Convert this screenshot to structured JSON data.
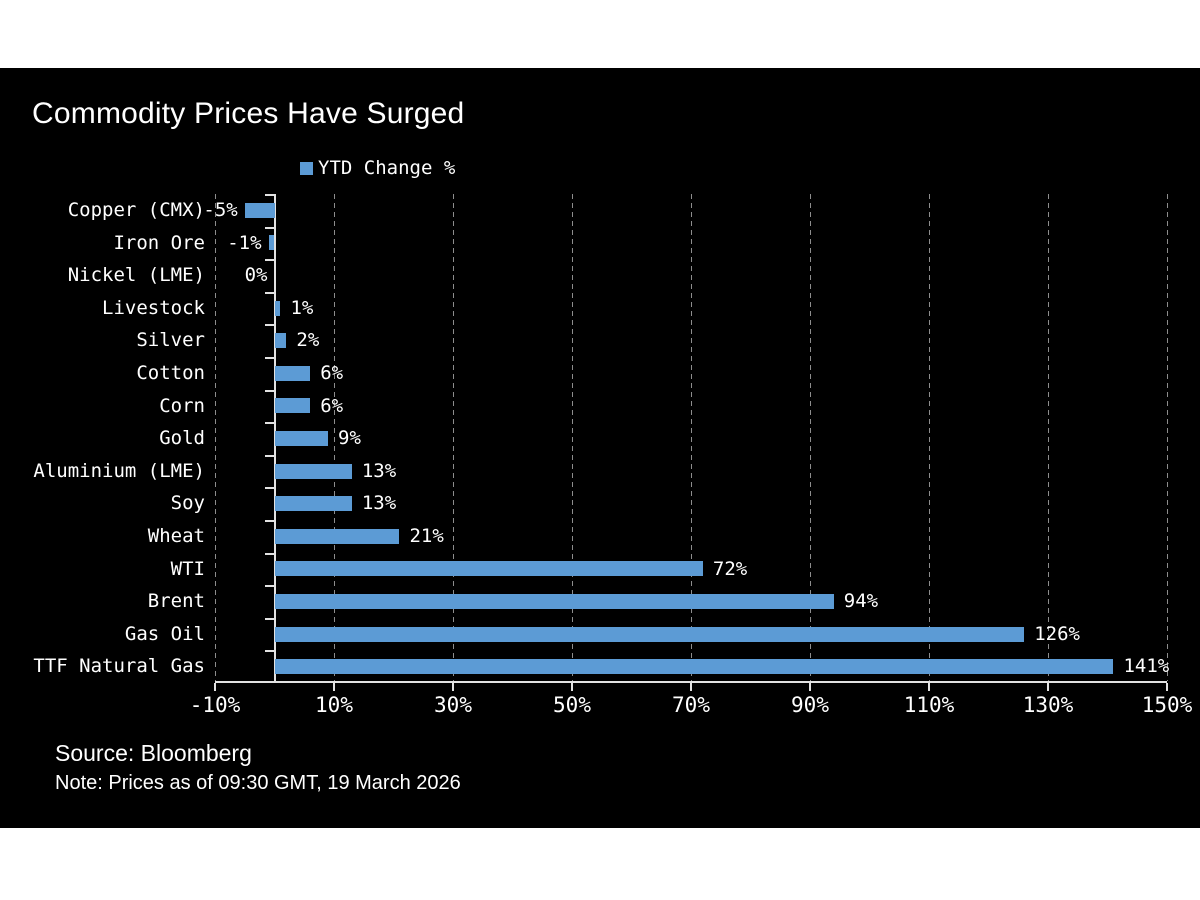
{
  "title": "Commodity Prices Have Surged",
  "legend": {
    "label": "YTD Change %"
  },
  "footer": {
    "source": "Source: Bloomberg",
    "note": "Note: Prices as of 09:30 GMT, 19 March 2026"
  },
  "colors": {
    "panel_background": "#000000",
    "page_background": "#ffffff",
    "bar": "#5C9BD5",
    "axis": "#e2e2e2",
    "gridline": "#8d8d8d",
    "text": "#ffffff"
  },
  "chart_data": {
    "type": "bar",
    "orientation": "horizontal",
    "title": "Commodity Prices Have Surged",
    "series_name": "YTD Change %",
    "categories": [
      "Copper (CMX)",
      "Iron Ore",
      "Nickel (LME)",
      "Livestock",
      "Silver",
      "Cotton",
      "Corn",
      "Gold",
      "Aluminium (LME)",
      "Soy",
      "Wheat",
      "WTI",
      "Brent",
      "Gas Oil",
      "TTF Natural Gas"
    ],
    "values": [
      -5,
      -1,
      0,
      1,
      2,
      6,
      6,
      9,
      13,
      13,
      21,
      72,
      94,
      126,
      141
    ],
    "value_labels": [
      "-5%",
      "-1%",
      "0%",
      "1%",
      "2%",
      "6%",
      "6%",
      "9%",
      "13%",
      "13%",
      "21%",
      "72%",
      "94%",
      "126%",
      "141%"
    ],
    "xlim": [
      -10,
      150
    ],
    "x_ticks": [
      -10,
      10,
      30,
      50,
      70,
      90,
      110,
      130,
      150
    ],
    "x_tick_labels": [
      "-10%",
      "10%",
      "30%",
      "50%",
      "70%",
      "90%",
      "110%",
      "130%",
      "150%"
    ],
    "grid": "dashed vertical gridlines at labeled ticks",
    "legend_position": "top-center",
    "xlabel": "",
    "ylabel": ""
  }
}
